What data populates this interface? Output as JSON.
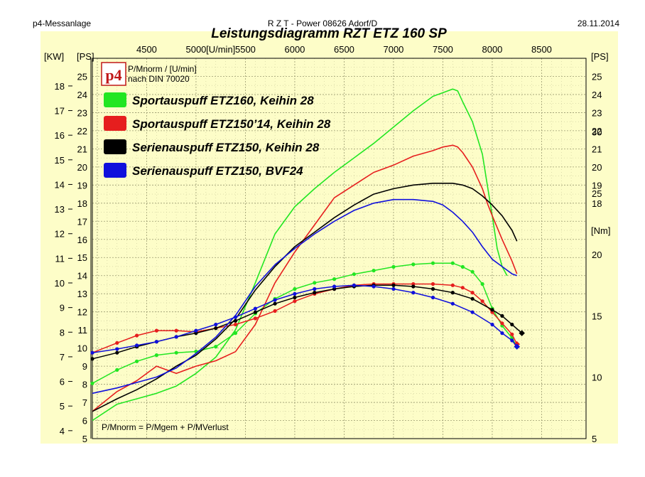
{
  "header": {
    "left": "p4-Messanlage",
    "center": "R Z T - Power   08626 Adorf/D",
    "right": "28.11.2014"
  },
  "chart_data": {
    "type": "line",
    "title": "Leistungsdiagramm RZT ETZ 160 SP",
    "logo_text": "p4",
    "note_top_1": "P/Mnorm / [U/min]",
    "note_top_2": "nach DIN 70020",
    "note_bottom": "P/Mnorm = P/Mgem + P/MVerlust",
    "x_unit_label": "[U/min]",
    "x_ticks": [
      4500,
      5000,
      5500,
      6000,
      6500,
      7000,
      7500,
      8000,
      8500
    ],
    "xlim": [
      3950,
      8950
    ],
    "left_kw_label": "[KW]",
    "left_ps_label": "[PS]",
    "right_ps_label": "[PS]",
    "right_nm_label": "[Nm]",
    "kw_ticks": [
      4,
      5,
      6,
      7,
      8,
      9,
      10,
      11,
      12,
      13,
      14,
      15,
      16,
      17,
      18
    ],
    "ps_ticks": [
      5,
      6,
      7,
      8,
      9,
      10,
      11,
      12,
      13,
      14,
      15,
      16,
      17,
      18,
      19,
      20,
      21,
      22,
      23,
      24,
      25
    ],
    "ps_lim": [
      5,
      26
    ],
    "nm_ticks": [
      5,
      10,
      15,
      20,
      25,
      30
    ],
    "nm_lim": [
      5,
      36
    ],
    "grid": true,
    "series": [
      {
        "name": "Sportauspuff ETZ160, Keihin 28",
        "color": "#22e622",
        "power_x": [
          3950,
          4200,
          4400,
          4600,
          4800,
          5000,
          5200,
          5400,
          5600,
          5800,
          6000,
          6200,
          6400,
          6600,
          6800,
          7000,
          7200,
          7400,
          7500,
          7600,
          7650,
          7700,
          7800,
          7900,
          7950,
          8000,
          8050,
          8100,
          8150
        ],
        "power_ps": [
          6.0,
          6.9,
          7.2,
          7.5,
          7.9,
          8.6,
          9.5,
          11.0,
          13.6,
          16.3,
          17.8,
          18.8,
          19.7,
          20.5,
          21.3,
          22.2,
          23.1,
          23.9,
          24.1,
          24.3,
          24.2,
          23.6,
          22.5,
          20.7,
          19.0,
          17.3,
          15.5,
          14.5,
          14.0
        ],
        "torque_x": [
          3950,
          4200,
          4400,
          4600,
          4800,
          5000,
          5200,
          5400,
          5600,
          5800,
          6000,
          6200,
          6400,
          6600,
          6800,
          7000,
          7200,
          7400,
          7600,
          7700,
          7800,
          7900,
          8000,
          8100,
          8200,
          8250
        ],
        "torque_nm": [
          9.5,
          10.6,
          11.3,
          11.8,
          12.0,
          12.1,
          12.5,
          13.6,
          15.2,
          16.4,
          17.2,
          17.7,
          18.0,
          18.4,
          18.7,
          19.0,
          19.2,
          19.3,
          19.3,
          19.0,
          18.6,
          17.6,
          15.6,
          14.2,
          13.2,
          12.5
        ]
      },
      {
        "name": "Sportauspuff ETZ150’14, Keihin 28",
        "color": "#e61e1e",
        "power_x": [
          3950,
          4200,
          4400,
          4600,
          4800,
          5000,
          5200,
          5400,
          5600,
          5800,
          6000,
          6200,
          6400,
          6600,
          6800,
          7000,
          7200,
          7400,
          7500,
          7600,
          7650,
          7700,
          7800,
          7900,
          7950,
          8000,
          8100,
          8200,
          8250
        ],
        "power_ps": [
          6.5,
          7.6,
          8.2,
          9.0,
          8.6,
          9.0,
          9.3,
          9.8,
          11.3,
          13.6,
          15.3,
          16.8,
          18.3,
          19.0,
          19.7,
          20.1,
          20.6,
          20.9,
          21.1,
          21.2,
          21.1,
          20.8,
          20.0,
          18.8,
          18.0,
          17.3,
          16.0,
          14.8,
          14.1
        ],
        "torque_x": [
          3950,
          4200,
          4400,
          4600,
          4800,
          5000,
          5200,
          5400,
          5600,
          5800,
          6000,
          6200,
          6400,
          6600,
          6800,
          7000,
          7200,
          7400,
          7600,
          7700,
          7800,
          7900,
          8000,
          8100,
          8200,
          8250
        ],
        "torque_nm": [
          12.0,
          12.8,
          13.4,
          13.8,
          13.8,
          13.7,
          14.0,
          14.3,
          14.8,
          15.4,
          16.2,
          16.8,
          17.2,
          17.5,
          17.6,
          17.6,
          17.6,
          17.6,
          17.5,
          17.3,
          16.9,
          16.2,
          15.3,
          14.4,
          13.5,
          12.7
        ]
      },
      {
        "name": "Serienauspuff ETZ150, Keihin 28",
        "color": "#000000",
        "power_x": [
          3950,
          4200,
          4400,
          4600,
          4800,
          5000,
          5200,
          5400,
          5600,
          5800,
          6000,
          6200,
          6400,
          6600,
          6800,
          7000,
          7200,
          7400,
          7500,
          7600,
          7700,
          7800,
          7900,
          8000,
          8100,
          8200,
          8250
        ],
        "power_ps": [
          6.5,
          7.2,
          7.7,
          8.3,
          9.0,
          9.6,
          10.5,
          11.6,
          13.2,
          14.5,
          15.6,
          16.4,
          17.2,
          17.9,
          18.5,
          18.8,
          19.0,
          19.1,
          19.1,
          19.1,
          19.0,
          18.8,
          18.4,
          17.9,
          17.3,
          16.5,
          15.9
        ],
        "torque_x": [
          3950,
          4200,
          4400,
          4600,
          4800,
          5000,
          5200,
          5400,
          5600,
          5800,
          6000,
          6200,
          6400,
          6600,
          6800,
          7000,
          7200,
          7400,
          7600,
          7800,
          8000,
          8100,
          8200,
          8300
        ],
        "torque_nm": [
          11.5,
          12.0,
          12.5,
          12.9,
          13.3,
          13.6,
          14.0,
          14.6,
          15.3,
          16.0,
          16.5,
          16.9,
          17.2,
          17.4,
          17.5,
          17.5,
          17.4,
          17.2,
          16.9,
          16.4,
          15.5,
          15.0,
          14.3,
          13.6
        ]
      },
      {
        "name": "Serienauspuff ETZ150, BVF24",
        "color": "#1010dc",
        "power_x": [
          3950,
          4200,
          4400,
          4600,
          4800,
          5000,
          5200,
          5400,
          5600,
          5800,
          6000,
          6200,
          6400,
          6600,
          6800,
          7000,
          7200,
          7400,
          7500,
          7600,
          7700,
          7800,
          7900,
          8000,
          8100,
          8200,
          8250
        ],
        "power_ps": [
          7.5,
          7.8,
          8.1,
          8.4,
          8.9,
          9.7,
          10.6,
          11.8,
          13.4,
          14.6,
          15.5,
          16.3,
          17.0,
          17.6,
          18.0,
          18.2,
          18.2,
          18.1,
          17.9,
          17.5,
          17.0,
          16.4,
          15.6,
          14.9,
          14.5,
          14.1,
          14.0
        ],
        "torque_x": [
          3950,
          4200,
          4400,
          4600,
          4800,
          5000,
          5200,
          5400,
          5600,
          5800,
          6000,
          6200,
          6400,
          6600,
          6800,
          7000,
          7200,
          7400,
          7600,
          7800,
          8000,
          8100,
          8200,
          8250
        ],
        "torque_nm": [
          12.0,
          12.3,
          12.6,
          12.9,
          13.3,
          13.8,
          14.3,
          14.9,
          15.6,
          16.3,
          16.8,
          17.2,
          17.4,
          17.5,
          17.4,
          17.2,
          16.9,
          16.5,
          16.0,
          15.3,
          14.3,
          13.6,
          13.0,
          12.5
        ]
      }
    ]
  }
}
